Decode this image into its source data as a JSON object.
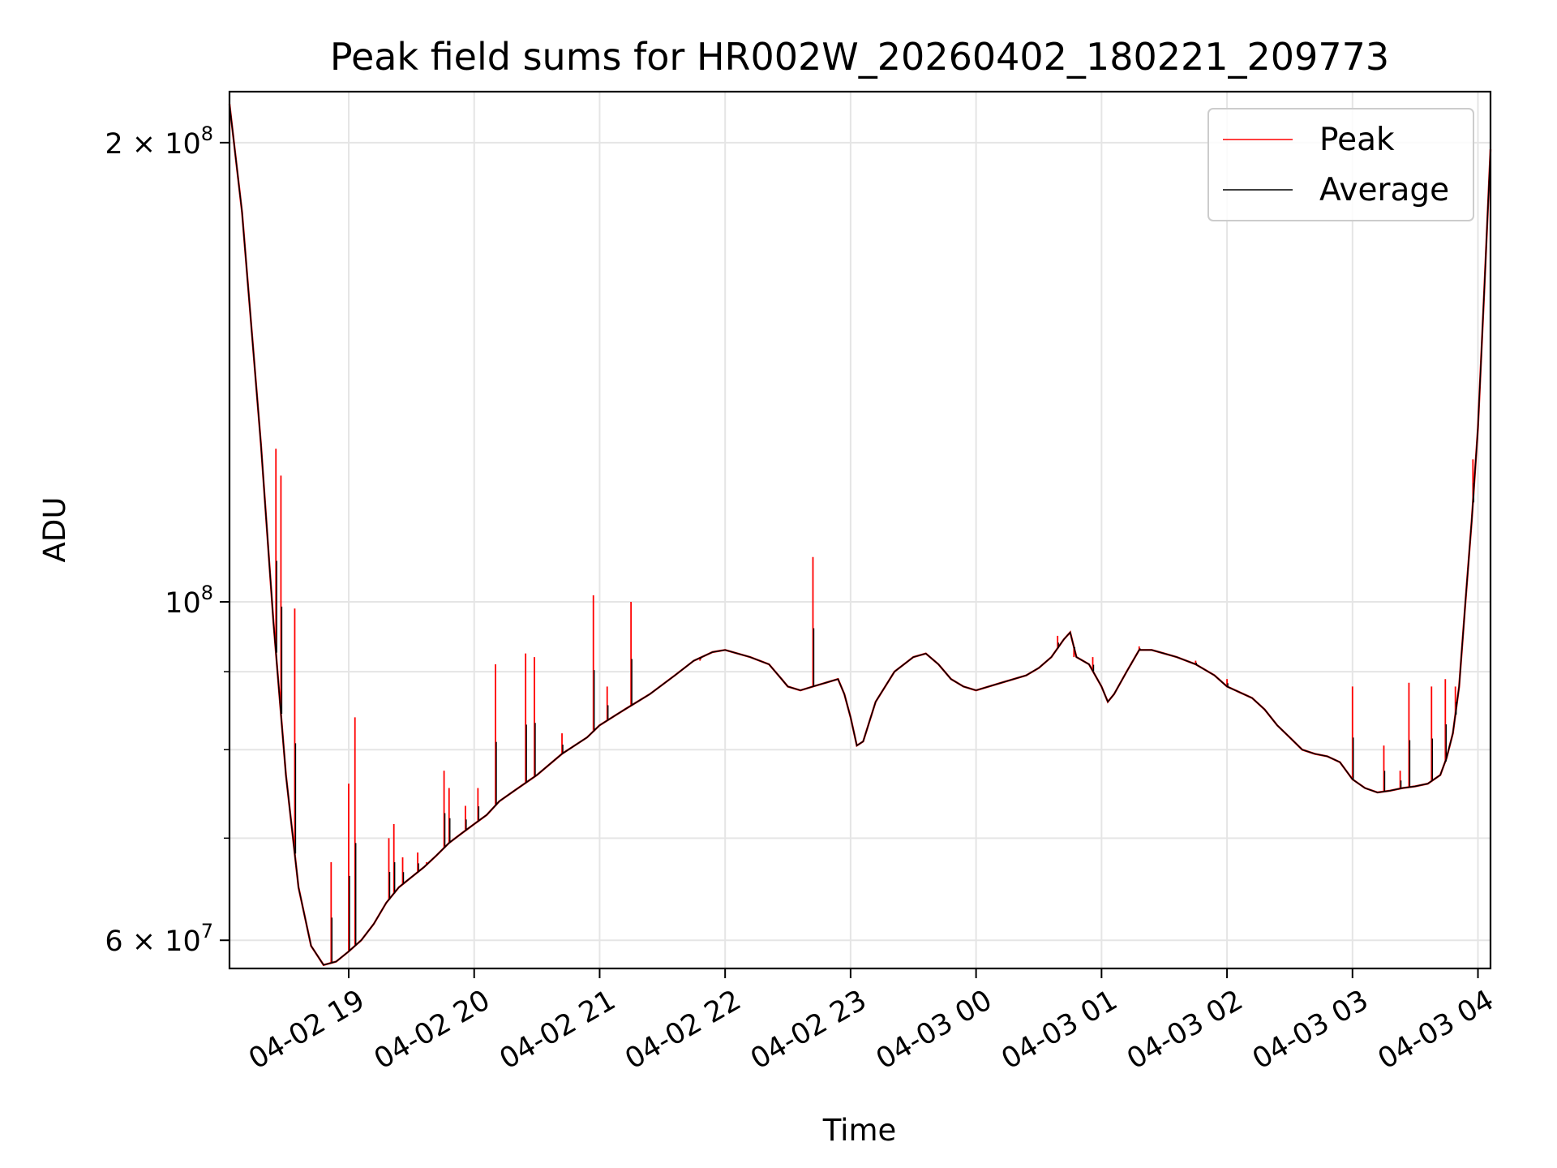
{
  "chart_data": {
    "type": "line",
    "title": "Peak field sums for HR002W_20260402_180221_209773",
    "xlabel": "Time",
    "ylabel": "ADU",
    "yscale": "log",
    "ylim": [
      57500000,
      216000000
    ],
    "xlim_hours": [
      18.05,
      4.1
    ],
    "grid": true,
    "legend_position": "top-right",
    "x_ticks": [
      {
        "label": "04-02 19",
        "hour": 19
      },
      {
        "label": "04-02 20",
        "hour": 20
      },
      {
        "label": "04-02 21",
        "hour": 21
      },
      {
        "label": "04-02 22",
        "hour": 22
      },
      {
        "label": "04-02 23",
        "hour": 23
      },
      {
        "label": "04-03 00",
        "hour": 24
      },
      {
        "label": "04-03 01",
        "hour": 25
      },
      {
        "label": "04-03 02",
        "hour": 26
      },
      {
        "label": "04-03 03",
        "hour": 27
      },
      {
        "label": "04-03 04",
        "hour": 28
      }
    ],
    "y_ticks_major": [
      {
        "value": 60000000,
        "mantissa": "6",
        "exponent": "7"
      },
      {
        "value": 100000000,
        "mantissa": "",
        "exponent": "8"
      },
      {
        "value": 200000000,
        "mantissa": "2",
        "exponent": "8"
      }
    ],
    "y_ticks_minor": [
      70000000,
      80000000,
      90000000
    ],
    "series": [
      {
        "name": "Average",
        "color": "#000000",
        "points": [
          [
            18.05,
            212000000
          ],
          [
            18.15,
            180000000
          ],
          [
            18.3,
            127000000
          ],
          [
            18.4,
            97000000
          ],
          [
            18.5,
            77000000
          ],
          [
            18.6,
            65000000
          ],
          [
            18.7,
            59500000
          ],
          [
            18.8,
            57800000
          ],
          [
            18.9,
            58100000
          ],
          [
            19.0,
            59000000
          ],
          [
            19.1,
            60000000
          ],
          [
            19.2,
            61500000
          ],
          [
            19.3,
            63500000
          ],
          [
            19.4,
            65000000
          ],
          [
            19.5,
            66000000
          ],
          [
            19.6,
            67000000
          ],
          [
            19.7,
            68200000
          ],
          [
            19.8,
            69500000
          ],
          [
            19.9,
            70500000
          ],
          [
            20.0,
            71500000
          ],
          [
            20.1,
            72500000
          ],
          [
            20.2,
            74000000
          ],
          [
            20.35,
            75500000
          ],
          [
            20.5,
            77000000
          ],
          [
            20.7,
            79500000
          ],
          [
            20.9,
            81500000
          ],
          [
            21.0,
            83000000
          ],
          [
            21.2,
            85000000
          ],
          [
            21.4,
            87000000
          ],
          [
            21.6,
            89500000
          ],
          [
            21.75,
            91500000
          ],
          [
            21.9,
            92700000
          ],
          [
            22.0,
            93000000
          ],
          [
            22.2,
            92000000
          ],
          [
            22.35,
            91000000
          ],
          [
            22.45,
            89000000
          ],
          [
            22.5,
            88000000
          ],
          [
            22.6,
            87500000
          ],
          [
            22.7,
            88000000
          ],
          [
            22.8,
            88500000
          ],
          [
            22.9,
            89000000
          ],
          [
            22.95,
            87000000
          ],
          [
            23.0,
            84000000
          ],
          [
            23.05,
            80500000
          ],
          [
            23.1,
            81000000
          ],
          [
            23.2,
            86000000
          ],
          [
            23.35,
            90000000
          ],
          [
            23.5,
            92000000
          ],
          [
            23.6,
            92500000
          ],
          [
            23.7,
            91000000
          ],
          [
            23.8,
            89000000
          ],
          [
            23.9,
            88000000
          ],
          [
            24.0,
            87500000
          ],
          [
            24.2,
            88500000
          ],
          [
            24.4,
            89500000
          ],
          [
            24.5,
            90500000
          ],
          [
            24.6,
            92000000
          ],
          [
            24.7,
            94500000
          ],
          [
            24.75,
            95500000
          ],
          [
            24.8,
            92000000
          ],
          [
            24.9,
            91000000
          ],
          [
            25.0,
            88000000
          ],
          [
            25.05,
            86000000
          ],
          [
            25.1,
            87000000
          ],
          [
            25.2,
            90000000
          ],
          [
            25.3,
            93000000
          ],
          [
            25.4,
            93000000
          ],
          [
            25.5,
            92500000
          ],
          [
            25.6,
            92000000
          ],
          [
            25.75,
            91000000
          ],
          [
            25.9,
            89500000
          ],
          [
            26.0,
            88000000
          ],
          [
            26.2,
            86500000
          ],
          [
            26.3,
            85000000
          ],
          [
            26.4,
            83000000
          ],
          [
            26.5,
            81500000
          ],
          [
            26.6,
            80000000
          ],
          [
            26.7,
            79500000
          ],
          [
            26.8,
            79200000
          ],
          [
            26.9,
            78500000
          ],
          [
            27.0,
            76500000
          ],
          [
            27.1,
            75500000
          ],
          [
            27.2,
            75000000
          ],
          [
            27.3,
            75200000
          ],
          [
            27.4,
            75500000
          ],
          [
            27.5,
            75700000
          ],
          [
            27.6,
            76000000
          ],
          [
            27.7,
            77000000
          ],
          [
            27.75,
            79000000
          ],
          [
            27.8,
            82000000
          ],
          [
            27.85,
            88000000
          ],
          [
            27.9,
            100000000
          ],
          [
            27.95,
            113000000
          ],
          [
            28.0,
            130000000
          ],
          [
            28.05,
            160000000
          ],
          [
            28.1,
            198000000
          ]
        ]
      },
      {
        "name": "Peak",
        "color": "#ff0000",
        "spikes": [
          [
            18.42,
            126000000
          ],
          [
            18.46,
            121000000
          ],
          [
            18.57,
            99000000
          ],
          [
            18.86,
            67500000
          ],
          [
            19.0,
            76000000
          ],
          [
            19.05,
            84000000
          ],
          [
            19.32,
            70000000
          ],
          [
            19.36,
            71500000
          ],
          [
            19.43,
            68000000
          ],
          [
            19.55,
            68500000
          ],
          [
            19.62,
            67500000
          ],
          [
            19.76,
            77500000
          ],
          [
            19.8,
            75500000
          ],
          [
            19.93,
            73500000
          ],
          [
            20.03,
            75500000
          ],
          [
            20.17,
            91000000
          ],
          [
            20.41,
            92500000
          ],
          [
            20.48,
            92000000
          ],
          [
            20.7,
            82000000
          ],
          [
            20.95,
            101000000
          ],
          [
            21.06,
            88000000
          ],
          [
            21.25,
            100000000
          ],
          [
            21.8,
            91500000
          ],
          [
            22.7,
            107000000
          ],
          [
            24.65,
            95000000
          ],
          [
            24.78,
            92000000
          ],
          [
            24.93,
            92000000
          ],
          [
            25.23,
            91000000
          ],
          [
            25.3,
            93500000
          ],
          [
            25.75,
            91500000
          ],
          [
            26.0,
            89000000
          ],
          [
            27.0,
            88000000
          ],
          [
            27.25,
            80500000
          ],
          [
            27.38,
            77500000
          ],
          [
            27.45,
            88500000
          ],
          [
            27.63,
            88000000
          ],
          [
            27.74,
            89000000
          ],
          [
            27.82,
            88000000
          ],
          [
            27.96,
            124000000
          ]
        ]
      }
    ]
  },
  "legend": {
    "peak_label": "Peak",
    "average_label": "Average"
  }
}
